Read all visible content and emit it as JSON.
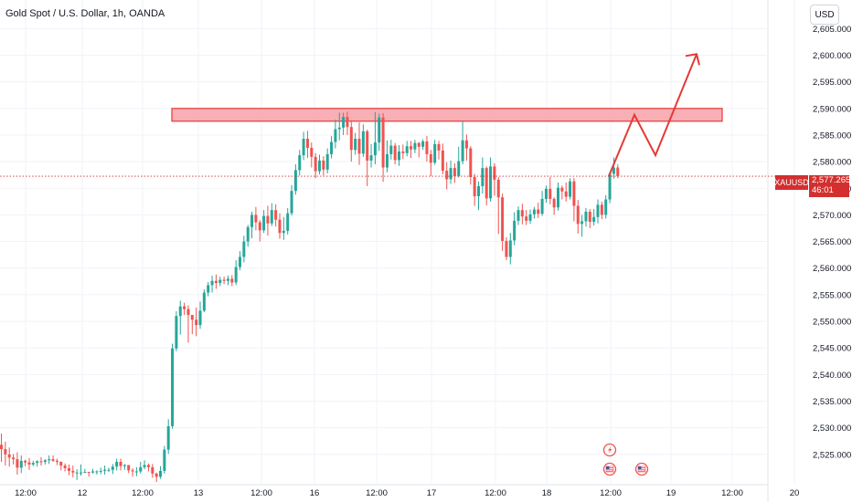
{
  "header": {
    "title": "Gold Spot / U.S. Dollar, 1h, OANDA",
    "currency": "USD"
  },
  "price_marker": {
    "symbol": "XAUUSD",
    "price": "2,577.265",
    "countdown": "46:01"
  },
  "colors": {
    "up": "#26a69a",
    "down": "#ef5350",
    "zone_fill": "#f7a1a8",
    "zone_stroke": "#e53935",
    "arrow": "#e53935",
    "badge": "#d32f2f"
  },
  "chart_data": {
    "type": "candlestick",
    "instrument": "Gold Spot / U.S. Dollar",
    "timeframe": "1h",
    "source": "OANDA",
    "ylim": [
      2520,
      2609
    ],
    "y_ticks": [
      "2,525.000",
      "2,530.000",
      "2,535.000",
      "2,540.000",
      "2,545.000",
      "2,550.000",
      "2,555.000",
      "2,560.000",
      "2,565.000",
      "2,570.000",
      "2,575.000",
      "2,580.000",
      "2,585.000",
      "2,590.000",
      "2,595.000",
      "2,600.000",
      "2,605.000"
    ],
    "x_ticks": [
      "12:00",
      "12",
      "12:00",
      "13",
      "12:00",
      "16",
      "12:00",
      "17",
      "12:00",
      "18",
      "12:00",
      "19",
      "12:00",
      "20"
    ],
    "current_price": 2577.265,
    "resistance_zone": [
      2587.6,
      2590.0
    ],
    "projection": [
      2577.3,
      2588.8,
      2581.2,
      2600.2
    ],
    "candles": [
      [
        2526.8,
        2526.0,
        2523.6,
        2528.9
      ],
      [
        2526.0,
        2525.0,
        2522.9,
        2527.4
      ],
      [
        2525.0,
        2524.4,
        2522.7,
        2526.3
      ],
      [
        2524.4,
        2524.1,
        2523.1,
        2525.1
      ],
      [
        2524.1,
        2522.5,
        2521.2,
        2525.4
      ],
      [
        2522.5,
        2523.8,
        2521.5,
        2524.8
      ],
      [
        2523.8,
        2523.5,
        2522.8,
        2524.0
      ],
      [
        2523.5,
        2523.1,
        2522.1,
        2524.3
      ],
      [
        2523.1,
        2523.4,
        2522.8,
        2523.8
      ],
      [
        2523.4,
        2523.7,
        2522.7,
        2523.9
      ],
      [
        2523.7,
        2523.6,
        2522.9,
        2524.5
      ],
      [
        2523.6,
        2523.9,
        2523.1,
        2524.1
      ],
      [
        2523.9,
        2524.1,
        2523.2,
        2524.8
      ],
      [
        2524.1,
        2523.8,
        2523.6,
        2524.8
      ],
      [
        2523.8,
        2523.6,
        2523.0,
        2524.2
      ],
      [
        2523.6,
        2522.9,
        2522.0,
        2523.7
      ],
      [
        2522.9,
        2522.4,
        2521.8,
        2523.3
      ],
      [
        2522.4,
        2521.9,
        2521.1,
        2523.1
      ],
      [
        2521.9,
        2521.6,
        2520.7,
        2522.9
      ],
      [
        2521.6,
        2521.6,
        2520.2,
        2522.2
      ],
      [
        2521.6,
        2521.6,
        2521.0,
        2523.1
      ],
      [
        2521.6,
        2521.7,
        2521.5,
        2522.3
      ],
      [
        2521.7,
        2521.6,
        2520.8,
        2521.7
      ],
      [
        2521.6,
        2521.8,
        2521.4,
        2522.3
      ],
      [
        2521.8,
        2521.8,
        2521.2,
        2522.0
      ],
      [
        2521.8,
        2521.9,
        2521.3,
        2522.5
      ],
      [
        2521.9,
        2522.1,
        2521.2,
        2522.9
      ],
      [
        2522.1,
        2522.1,
        2521.7,
        2522.5
      ],
      [
        2522.1,
        2522.7,
        2521.3,
        2523.2
      ],
      [
        2522.7,
        2523.6,
        2522.0,
        2524.2
      ],
      [
        2523.6,
        2522.8,
        2522.0,
        2524.2
      ],
      [
        2522.8,
        2523.0,
        2522.1,
        2523.2
      ],
      [
        2523.0,
        2522.0,
        2521.5,
        2523.0
      ],
      [
        2522.0,
        2521.8,
        2520.8,
        2522.4
      ],
      [
        2521.8,
        2521.8,
        2520.9,
        2522.6
      ],
      [
        2521.8,
        2522.6,
        2521.4,
        2523.6
      ],
      [
        2522.6,
        2523.0,
        2522.2,
        2523.9
      ],
      [
        2523.0,
        2522.6,
        2521.8,
        2523.3
      ],
      [
        2522.6,
        2521.4,
        2520.6,
        2523.2
      ],
      [
        2521.4,
        2520.8,
        2519.8,
        2521.6
      ],
      [
        2520.8,
        2521.9,
        2520.4,
        2522.8
      ],
      [
        2521.9,
        2525.9,
        2521.4,
        2526.6
      ],
      [
        2525.9,
        2530.3,
        2525.1,
        2531.6
      ],
      [
        2530.3,
        2544.9,
        2529.8,
        2545.8
      ],
      [
        2544.9,
        2551.0,
        2544.4,
        2551.9
      ],
      [
        2551.0,
        2552.8,
        2547.5,
        2553.9
      ],
      [
        2552.8,
        2552.3,
        2551.2,
        2553.5
      ],
      [
        2552.3,
        2551.2,
        2546.0,
        2553.0
      ],
      [
        2551.2,
        2550.3,
        2547.6,
        2550.9
      ],
      [
        2550.3,
        2549.3,
        2547.2,
        2552.6
      ],
      [
        2549.3,
        2552.0,
        2548.6,
        2553.7
      ],
      [
        2552.0,
        2555.4,
        2551.7,
        2556.0
      ],
      [
        2555.4,
        2556.8,
        2554.7,
        2557.4
      ],
      [
        2556.8,
        2557.6,
        2555.4,
        2558.6
      ],
      [
        2557.6,
        2557.2,
        2556.1,
        2558.8
      ],
      [
        2557.2,
        2557.8,
        2556.6,
        2558.4
      ],
      [
        2557.8,
        2557.6,
        2557.0,
        2558.4
      ],
      [
        2557.6,
        2558.0,
        2556.8,
        2558.6
      ],
      [
        2558.0,
        2557.3,
        2556.6,
        2558.7
      ],
      [
        2557.3,
        2560.2,
        2556.8,
        2561.5
      ],
      [
        2560.2,
        2562.1,
        2559.6,
        2563.2
      ],
      [
        2562.1,
        2565.0,
        2561.1,
        2566.1
      ],
      [
        2565.0,
        2567.7,
        2564.0,
        2568.1
      ],
      [
        2567.7,
        2570.0,
        2565.6,
        2570.6
      ],
      [
        2570.0,
        2568.6,
        2567.1,
        2571.5
      ],
      [
        2568.6,
        2567.1,
        2565.0,
        2569.0
      ],
      [
        2567.1,
        2569.8,
        2566.6,
        2570.9
      ],
      [
        2569.8,
        2568.4,
        2566.1,
        2571.7
      ],
      [
        2568.4,
        2570.9,
        2567.9,
        2572.2
      ],
      [
        2570.9,
        2569.1,
        2567.8,
        2572.0
      ],
      [
        2569.1,
        2566.6,
        2565.5,
        2570.3
      ],
      [
        2566.6,
        2567.0,
        2565.3,
        2569.6
      ],
      [
        2567.0,
        2570.3,
        2566.3,
        2571.3
      ],
      [
        2570.3,
        2574.5,
        2569.9,
        2575.6
      ],
      [
        2574.5,
        2578.4,
        2573.8,
        2579.5
      ],
      [
        2578.4,
        2581.2,
        2577.4,
        2582.2
      ],
      [
        2581.2,
        2584.3,
        2580.3,
        2585.6
      ],
      [
        2584.3,
        2582.6,
        2580.7,
        2585.8
      ],
      [
        2582.6,
        2580.9,
        2578.9,
        2583.6
      ],
      [
        2580.9,
        2578.2,
        2576.9,
        2581.6
      ],
      [
        2578.2,
        2580.2,
        2577.6,
        2581.3
      ],
      [
        2580.2,
        2578.5,
        2577.4,
        2581.0
      ],
      [
        2578.5,
        2581.4,
        2577.8,
        2582.5
      ],
      [
        2581.4,
        2583.7,
        2580.6,
        2584.8
      ],
      [
        2583.7,
        2586.1,
        2582.5,
        2587.9
      ],
      [
        2586.1,
        2586.4,
        2584.0,
        2589.2
      ],
      [
        2586.4,
        2588.4,
        2585.0,
        2589.2
      ],
      [
        2588.4,
        2586.5,
        2585.0,
        2589.4
      ],
      [
        2586.5,
        2582.2,
        2580.0,
        2587.8
      ],
      [
        2582.2,
        2584.3,
        2581.3,
        2585.4
      ],
      [
        2584.3,
        2581.5,
        2579.4,
        2587.4
      ],
      [
        2581.5,
        2585.7,
        2580.9,
        2587.0
      ],
      [
        2585.7,
        2580.2,
        2575.4,
        2586.0
      ],
      [
        2580.2,
        2581.2,
        2578.9,
        2583.3
      ],
      [
        2581.2,
        2583.6,
        2579.5,
        2589.3
      ],
      [
        2583.6,
        2588.3,
        2582.0,
        2589.0
      ],
      [
        2588.3,
        2578.9,
        2576.2,
        2589.1
      ],
      [
        2578.9,
        2581.4,
        2578.0,
        2584.0
      ],
      [
        2581.4,
        2583.0,
        2580.4,
        2584.1
      ],
      [
        2583.0,
        2580.3,
        2579.5,
        2583.5
      ],
      [
        2580.3,
        2581.9,
        2579.2,
        2583.1
      ],
      [
        2581.9,
        2581.6,
        2580.5,
        2583.2
      ],
      [
        2581.6,
        2582.9,
        2581.0,
        2583.9
      ],
      [
        2582.9,
        2582.3,
        2580.7,
        2583.9
      ],
      [
        2582.3,
        2583.5,
        2581.6,
        2584.1
      ],
      [
        2583.5,
        2582.8,
        2580.8,
        2583.7
      ],
      [
        2582.8,
        2583.8,
        2582.2,
        2584.2
      ],
      [
        2583.8,
        2581.4,
        2580.0,
        2584.8
      ],
      [
        2581.4,
        2579.8,
        2577.3,
        2582.2
      ],
      [
        2579.8,
        2583.3,
        2579.4,
        2584.1
      ],
      [
        2583.3,
        2582.1,
        2580.4,
        2583.9
      ],
      [
        2582.1,
        2578.3,
        2577.6,
        2583.4
      ],
      [
        2578.3,
        2576.7,
        2574.8,
        2579.9
      ],
      [
        2576.7,
        2578.8,
        2575.8,
        2580.2
      ],
      [
        2578.8,
        2577.3,
        2576.0,
        2579.7
      ],
      [
        2577.3,
        2580.1,
        2577.0,
        2582.8
      ],
      [
        2580.1,
        2584.0,
        2579.5,
        2587.5
      ],
      [
        2584.0,
        2582.5,
        2580.2,
        2585.1
      ],
      [
        2582.5,
        2577.1,
        2575.7,
        2582.9
      ],
      [
        2577.1,
        2573.5,
        2571.7,
        2577.7
      ],
      [
        2573.5,
        2575.4,
        2570.9,
        2576.3
      ],
      [
        2575.4,
        2578.8,
        2574.0,
        2580.8
      ],
      [
        2578.8,
        2573.1,
        2571.8,
        2579.1
      ],
      [
        2573.1,
        2579.1,
        2572.5,
        2580.8
      ],
      [
        2579.1,
        2576.6,
        2573.6,
        2579.7
      ],
      [
        2576.6,
        2573.3,
        2566.4,
        2577.1
      ],
      [
        2573.3,
        2565.1,
        2563.2,
        2574.0
      ],
      [
        2565.1,
        2562.1,
        2561.5,
        2565.8
      ],
      [
        2562.1,
        2565.2,
        2560.7,
        2566.6
      ],
      [
        2565.2,
        2568.9,
        2564.3,
        2570.5
      ],
      [
        2568.9,
        2570.9,
        2568.1,
        2571.6
      ],
      [
        2570.9,
        2569.7,
        2568.2,
        2572.1
      ],
      [
        2569.7,
        2568.9,
        2568.1,
        2570.9
      ],
      [
        2568.9,
        2570.1,
        2568.3,
        2571.0
      ],
      [
        2570.1,
        2571.0,
        2569.3,
        2571.5
      ],
      [
        2571.0,
        2570.2,
        2569.4,
        2572.3
      ],
      [
        2570.2,
        2573.0,
        2569.8,
        2574.5
      ],
      [
        2573.0,
        2574.9,
        2572.3,
        2575.5
      ],
      [
        2574.9,
        2573.0,
        2572.0,
        2577.1
      ],
      [
        2573.0,
        2571.4,
        2570.0,
        2573.3
      ],
      [
        2571.4,
        2575.1,
        2570.8,
        2576.1
      ],
      [
        2575.1,
        2574.4,
        2572.9,
        2575.5
      ],
      [
        2574.4,
        2573.4,
        2572.5,
        2576.1
      ],
      [
        2573.4,
        2576.3,
        2572.9,
        2576.9
      ],
      [
        2576.3,
        2571.7,
        2568.8,
        2576.9
      ],
      [
        2571.7,
        2568.3,
        2566.5,
        2572.8
      ],
      [
        2568.3,
        2568.8,
        2565.9,
        2570.0
      ],
      [
        2568.8,
        2570.6,
        2567.8,
        2571.3
      ],
      [
        2570.6,
        2568.7,
        2567.5,
        2571.1
      ],
      [
        2568.7,
        2569.6,
        2568.0,
        2571.1
      ],
      [
        2569.6,
        2571.9,
        2568.4,
        2572.9
      ],
      [
        2571.9,
        2570.0,
        2569.2,
        2572.5
      ],
      [
        2570.0,
        2572.9,
        2569.3,
        2573.7
      ],
      [
        2572.9,
        2577.7,
        2572.2,
        2578.1
      ],
      [
        2577.7,
        2578.9,
        2576.8,
        2580.8
      ],
      [
        2578.9,
        2577.3,
        2576.9,
        2579.5
      ]
    ]
  }
}
